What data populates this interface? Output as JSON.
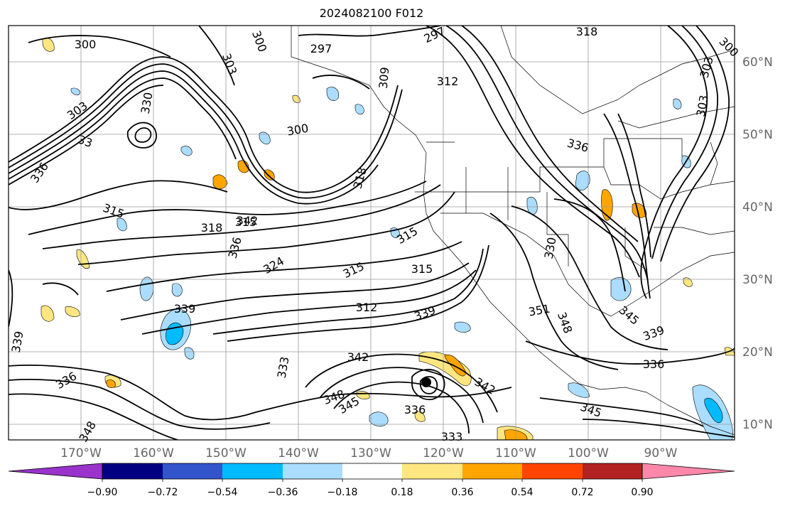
{
  "title": "2024082100 F012",
  "map": {
    "lon_labels": [
      "170°W",
      "160°W",
      "150°W",
      "140°W",
      "130°W",
      "120°W",
      "110°W",
      "100°W",
      "90°W"
    ],
    "lat_labels": [
      "60°N",
      "50°N",
      "40°N",
      "30°N",
      "20°N",
      "10°N"
    ],
    "contour_labels": [
      "300",
      "297",
      "297",
      "318",
      "303",
      "300",
      "309",
      "312",
      "303",
      "303",
      "33",
      "330",
      "300",
      "336",
      "315",
      "315",
      "318",
      "336",
      "315",
      "324",
      "315",
      "315",
      "336",
      "339",
      "312",
      "339",
      "351",
      "348",
      "342",
      "345",
      "339",
      "339",
      "333",
      "348",
      "345",
      "336",
      "342",
      "345",
      "348",
      "336",
      "333",
      "336",
      "318",
      "330",
      "342",
      "303",
      "300"
    ]
  },
  "colorbar": {
    "colors": [
      "#9933cc",
      "#000080",
      "#3355cc",
      "#00bbff",
      "#aaddff",
      "#ffffff",
      "#ffe680",
      "#ffa500",
      "#ff4400",
      "#b22222",
      "#ff88aa"
    ],
    "tick_labels": [
      "−0.90",
      "−0.72",
      "−0.54",
      "−0.36",
      "−0.18",
      "0.18",
      "0.36",
      "0.54",
      "0.72",
      "0.90"
    ]
  }
}
